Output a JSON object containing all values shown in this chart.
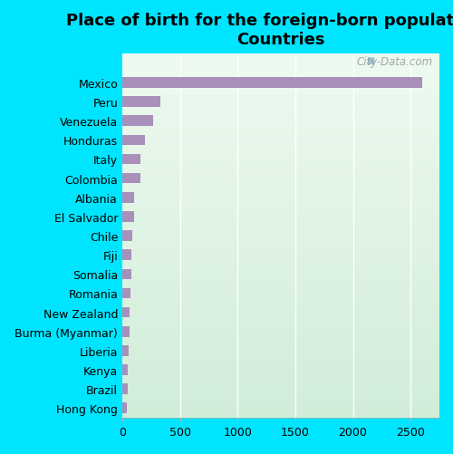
{
  "title": "Place of birth for the foreign-born population -\nCountries",
  "categories": [
    "Mexico",
    "Peru",
    "Venezuela",
    "Honduras",
    "Italy",
    "Colombia",
    "Albania",
    "El Salvador",
    "Chile",
    "Fiji",
    "Somalia",
    "Romania",
    "New Zealand",
    "Burma (Myanmar)",
    "Liberia",
    "Kenya",
    "Brazil",
    "Hong Kong"
  ],
  "values": [
    2600,
    330,
    270,
    200,
    160,
    155,
    105,
    100,
    85,
    80,
    75,
    70,
    65,
    60,
    55,
    50,
    45,
    40
  ],
  "bar_color": "#a990bb",
  "background_color": "#00e5ff",
  "plot_bg_color_topleft": "#e8f5ee",
  "plot_bg_color_bottomright": "#d0eedd",
  "xlim": [
    0,
    2750
  ],
  "xticks": [
    0,
    500,
    1000,
    1500,
    2000,
    2500
  ],
  "watermark": "City-Data.com",
  "title_fontsize": 13,
  "tick_fontsize": 9,
  "label_fontsize": 9,
  "grid_color": "#c8dbc8",
  "bar_height": 0.55
}
